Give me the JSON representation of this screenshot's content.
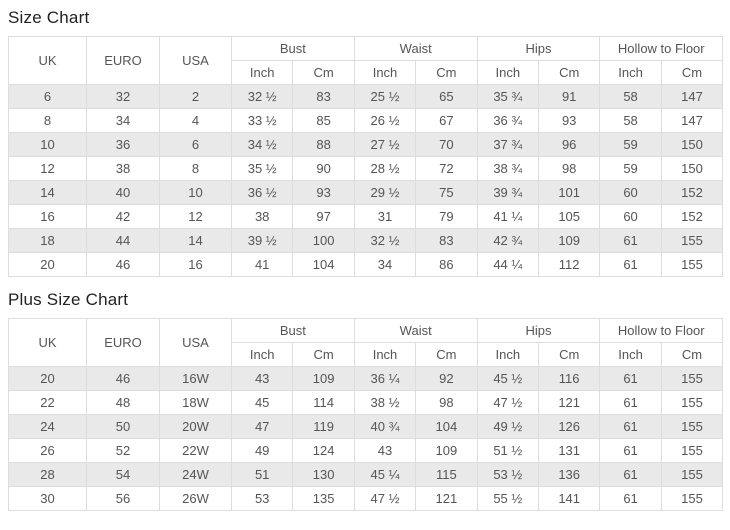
{
  "colors": {
    "row_shade": "#e9e9e9",
    "border": "#dddddd",
    "cell_text": "#555555",
    "title_text": "#222222",
    "background": "#ffffff"
  },
  "headers": {
    "uk": "UK",
    "euro": "EURO",
    "usa": "USA",
    "bust": "Bust",
    "waist": "Waist",
    "hips": "Hips",
    "hollow_to_floor": "Hollow to Floor",
    "inch": "Inch",
    "cm": "Cm"
  },
  "size_chart": {
    "title": "Size Chart",
    "rows": [
      [
        "6",
        "32",
        "2",
        "32 ½",
        "83",
        "25 ½",
        "65",
        "35 ¾",
        "91",
        "58",
        "147"
      ],
      [
        "8",
        "34",
        "4",
        "33 ½",
        "85",
        "26 ½",
        "67",
        "36 ¾",
        "93",
        "58",
        "147"
      ],
      [
        "10",
        "36",
        "6",
        "34 ½",
        "88",
        "27 ½",
        "70",
        "37 ¾",
        "96",
        "59",
        "150"
      ],
      [
        "12",
        "38",
        "8",
        "35 ½",
        "90",
        "28 ½",
        "72",
        "38 ¾",
        "98",
        "59",
        "150"
      ],
      [
        "14",
        "40",
        "10",
        "36 ½",
        "93",
        "29 ½",
        "75",
        "39 ¾",
        "101",
        "60",
        "152"
      ],
      [
        "16",
        "42",
        "12",
        "38",
        "97",
        "31",
        "79",
        "41 ¼",
        "105",
        "60",
        "152"
      ],
      [
        "18",
        "44",
        "14",
        "39 ½",
        "100",
        "32 ½",
        "83",
        "42 ¾",
        "109",
        "61",
        "155"
      ],
      [
        "20",
        "46",
        "16",
        "41",
        "104",
        "34",
        "86",
        "44 ¼",
        "112",
        "61",
        "155"
      ]
    ]
  },
  "plus_size_chart": {
    "title": "Plus Size Chart",
    "rows": [
      [
        "20",
        "46",
        "16W",
        "43",
        "109",
        "36 ¼",
        "92",
        "45 ½",
        "116",
        "61",
        "155"
      ],
      [
        "22",
        "48",
        "18W",
        "45",
        "114",
        "38 ½",
        "98",
        "47 ½",
        "121",
        "61",
        "155"
      ],
      [
        "24",
        "50",
        "20W",
        "47",
        "119",
        "40 ¾",
        "104",
        "49 ½",
        "126",
        "61",
        "155"
      ],
      [
        "26",
        "52",
        "22W",
        "49",
        "124",
        "43",
        "109",
        "51 ½",
        "131",
        "61",
        "155"
      ],
      [
        "28",
        "54",
        "24W",
        "51",
        "130",
        "45 ¼",
        "115",
        "53 ½",
        "136",
        "61",
        "155"
      ],
      [
        "30",
        "56",
        "26W",
        "53",
        "135",
        "47 ½",
        "121",
        "55 ½",
        "141",
        "61",
        "155"
      ]
    ]
  }
}
